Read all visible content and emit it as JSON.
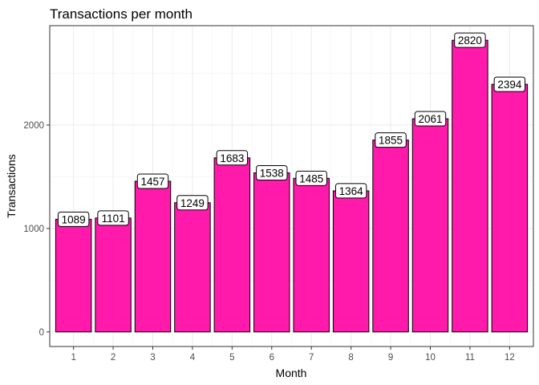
{
  "chart_data": {
    "type": "bar",
    "title": "Transactions per month",
    "xlabel": "Month",
    "ylabel": "Transactions",
    "categories": [
      "1",
      "2",
      "3",
      "4",
      "5",
      "6",
      "7",
      "8",
      "9",
      "10",
      "11",
      "12"
    ],
    "values": [
      1089,
      1101,
      1457,
      1249,
      1683,
      1538,
      1485,
      1364,
      1855,
      2061,
      2820,
      2394
    ],
    "data_labels": [
      "1089",
      "1101",
      "1457",
      "1249",
      "1683",
      "1538",
      "1485",
      "1364",
      "1855",
      "2061",
      "2820",
      "2394"
    ],
    "y_ticks": [
      0,
      1000,
      2000
    ],
    "y_tick_labels": [
      "0",
      "1000",
      "2000"
    ],
    "ylim": [
      -141,
      2961
    ],
    "grid": true,
    "legend": "none",
    "colors": {
      "bar_fill": "#ff1aac",
      "bar_stroke": "#000000",
      "panel_border": "#333333",
      "grid": "#ebebeb"
    }
  }
}
